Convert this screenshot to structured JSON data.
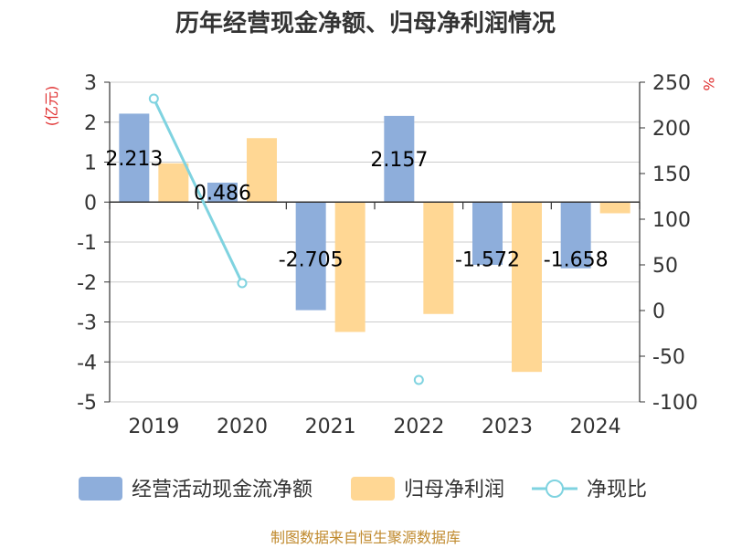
{
  "chart_data": {
    "type": "bar",
    "title": "历年经营现金净额、归母净利润情况",
    "categories": [
      "2019",
      "2020",
      "2021",
      "2022",
      "2023",
      "2024"
    ],
    "left_axis": {
      "unit": "(亿元)",
      "min": -5,
      "max": 3,
      "ticks": [
        "3",
        "2",
        "1",
        "0",
        "-1",
        "-2",
        "-3",
        "-4",
        "-5"
      ]
    },
    "right_axis": {
      "unit": "%",
      "min": -100,
      "max": 250,
      "ticks": [
        "250",
        "200",
        "150",
        "100",
        "50",
        "0",
        "-50",
        "-100"
      ]
    },
    "series": [
      {
        "name": "经营活动现金流净额",
        "type": "bar",
        "axis": "left",
        "color": "#8eaedb",
        "values": [
          2.213,
          0.486,
          -2.705,
          2.157,
          -1.572,
          -1.658
        ],
        "labels": [
          "2.213",
          "0.486",
          "-2.705",
          "2.157",
          "-1.572",
          "-1.658"
        ]
      },
      {
        "name": "归母净利润",
        "type": "bar",
        "axis": "left",
        "color": "#ffd794",
        "values": [
          0.97,
          1.6,
          -3.25,
          -2.8,
          -4.25,
          -0.28
        ]
      },
      {
        "name": "净现比",
        "type": "line",
        "axis": "right",
        "color": "#7fd3e0",
        "values": [
          232,
          30,
          null,
          -76,
          null,
          null
        ]
      }
    ],
    "grid": true,
    "legend_position": "bottom"
  },
  "footer": {
    "source": "制图数据来自恒生聚源数据库"
  }
}
